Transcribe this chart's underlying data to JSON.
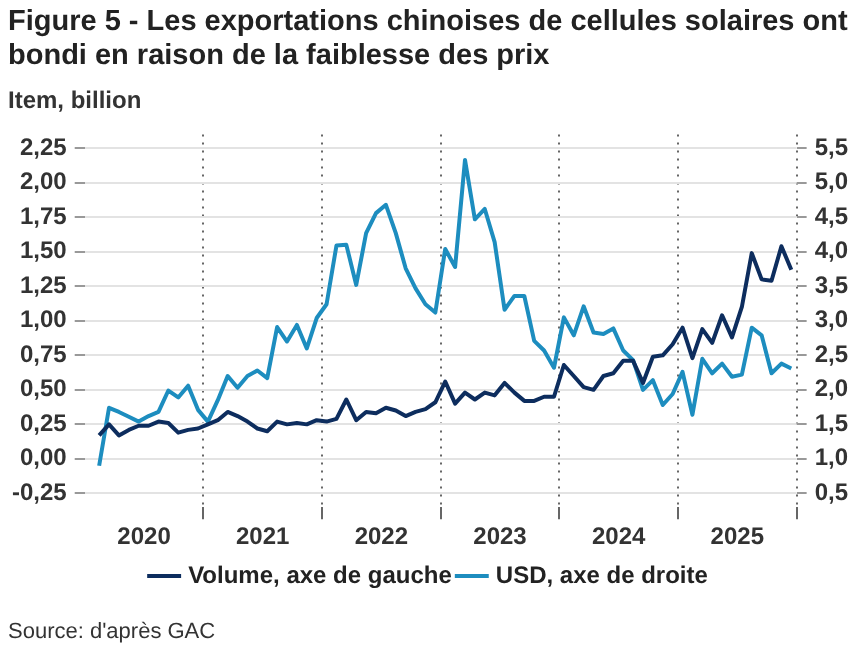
{
  "chart_data": {
    "type": "line",
    "title": "Figure 5 - Les exportations chinoises de cellules solaires ont bondi en raison de la faiblesse des prix",
    "ylabel": "Item, billion",
    "x": [
      "2020-02-15",
      "2020-03-15",
      "2020-04-15",
      "2020-05-15",
      "2020-06-15",
      "2020-07-15",
      "2020-08-15",
      "2020-09-15",
      "2020-10-15",
      "2020-11-15",
      "2020-12-15",
      "2021-01-15",
      "2021-02-15",
      "2021-03-15",
      "2021-04-15",
      "2021-05-15",
      "2021-06-15",
      "2021-07-15",
      "2021-08-15",
      "2021-09-15",
      "2021-10-15",
      "2021-11-15",
      "2021-12-15",
      "2022-01-15",
      "2022-02-15",
      "2022-03-15",
      "2022-04-15",
      "2022-05-15",
      "2022-06-15",
      "2022-07-15",
      "2022-08-15",
      "2022-09-15",
      "2022-10-15",
      "2022-11-15",
      "2022-12-15",
      "2023-01-15",
      "2023-02-15",
      "2023-03-15",
      "2023-04-15",
      "2023-05-15",
      "2023-06-15",
      "2023-07-15",
      "2023-08-15",
      "2023-09-15",
      "2023-10-15",
      "2023-11-15",
      "2023-12-15",
      "2024-01-15",
      "2024-02-15",
      "2024-03-15",
      "2024-04-15",
      "2024-05-15",
      "2024-06-15",
      "2024-07-15",
      "2024-08-15",
      "2024-09-15",
      "2024-10-15",
      "2024-11-15",
      "2024-12-15",
      "2025-01-15",
      "2025-02-15",
      "2025-03-15",
      "2025-04-15",
      "2025-05-15",
      "2025-06-15",
      "2025-07-15",
      "2025-08-15",
      "2025-09-15",
      "2025-10-15",
      "2025-11-15",
      "2025-12-15"
    ],
    "series": [
      {
        "name": "Volume, axe de gauche",
        "color": "#0d2d5e",
        "values": [
          0.17,
          0.25,
          0.17,
          0.21,
          0.24,
          0.24,
          0.27,
          0.26,
          0.19,
          0.21,
          0.22,
          0.25,
          0.28,
          0.34,
          0.31,
          0.27,
          0.22,
          0.2,
          0.27,
          0.25,
          0.26,
          0.25,
          0.28,
          0.27,
          0.29,
          0.43,
          0.28,
          0.34,
          0.33,
          0.37,
          0.35,
          0.31,
          0.34,
          0.36,
          0.41,
          0.56,
          0.4,
          0.48,
          0.43,
          0.48,
          0.46,
          0.55,
          0.48,
          0.42,
          0.42,
          0.45,
          0.45,
          0.68,
          0.6,
          0.52,
          0.5,
          0.6,
          0.62,
          0.71,
          0.71,
          0.55,
          0.74,
          0.75,
          0.83,
          0.95,
          0.73,
          0.94,
          0.84,
          1.04,
          0.88,
          1.1,
          1.49,
          1.3,
          1.29,
          1.54,
          1.37
        ]
      },
      {
        "name": "USD, axe de droite",
        "color": "#1d8dbf",
        "axis": "y2",
        "values": [
          0.9,
          1.74,
          1.68,
          1.61,
          1.54,
          1.62,
          1.68,
          1.99,
          1.89,
          2.06,
          1.71,
          1.54,
          1.85,
          2.2,
          2.03,
          2.2,
          2.28,
          2.17,
          2.91,
          2.7,
          2.94,
          2.6,
          3.04,
          3.24,
          4.09,
          4.1,
          3.52,
          4.27,
          4.56,
          4.68,
          4.27,
          3.76,
          3.47,
          3.24,
          3.12,
          4.04,
          3.78,
          5.33,
          4.47,
          4.62,
          4.14,
          3.16,
          3.36,
          3.36,
          2.71,
          2.57,
          2.32,
          3.05,
          2.79,
          3.21,
          2.83,
          2.81,
          2.89,
          2.57,
          2.43,
          2.0,
          2.14,
          1.78,
          1.94,
          2.26,
          1.64,
          2.45,
          2.24,
          2.38,
          2.19,
          2.22,
          2.9,
          2.79,
          2.24,
          2.38,
          2.31
        ]
      }
    ],
    "xlim": [
      "2020-01",
      "2026-01"
    ],
    "xticks": [
      {
        "value": "2020-07",
        "label": "2020"
      },
      {
        "value": "2021-01",
        "label": null
      },
      {
        "value": "2021-07",
        "label": "2021"
      },
      {
        "value": "2022-01",
        "label": null
      },
      {
        "value": "2022-07",
        "label": "2022"
      },
      {
        "value": "2023-01",
        "label": null
      },
      {
        "value": "2023-07",
        "label": "2023"
      },
      {
        "value": "2024-01",
        "label": null
      },
      {
        "value": "2024-07",
        "label": "2024"
      },
      {
        "value": "2025-01",
        "label": null
      },
      {
        "value": "2025-07",
        "label": "2025"
      },
      {
        "value": "2026-01",
        "label": null
      }
    ],
    "ylim": [
      -0.35,
      2.35
    ],
    "yticks": [
      {
        "value": -0.25,
        "label": "-0,25"
      },
      {
        "value": 0,
        "label": "0,00"
      },
      {
        "value": 0.25,
        "label": "0,25"
      },
      {
        "value": 0.5,
        "label": "0,50"
      },
      {
        "value": 0.75,
        "label": "0,75"
      },
      {
        "value": 1,
        "label": "1,00"
      },
      {
        "value": 1.25,
        "label": "1,25"
      },
      {
        "value": 1.5,
        "label": "1,50"
      },
      {
        "value": 1.75,
        "label": "1,75"
      },
      {
        "value": 2,
        "label": "2,00"
      },
      {
        "value": 2.25,
        "label": "2,25"
      }
    ],
    "y2lim": [
      0.3,
      5.7
    ],
    "y2ticks": [
      {
        "value": 0.5,
        "label": "0,5"
      },
      {
        "value": 1,
        "label": "1,0"
      },
      {
        "value": 1.5,
        "label": "1,5"
      },
      {
        "value": 2,
        "label": "2,0"
      },
      {
        "value": 2.5,
        "label": "2,5"
      },
      {
        "value": 3,
        "label": "3,0"
      },
      {
        "value": 3.5,
        "label": "3,5"
      },
      {
        "value": 4,
        "label": "4,0"
      },
      {
        "value": 4.5,
        "label": "4,5"
      },
      {
        "value": 5,
        "label": "5,0"
      },
      {
        "value": 5.5,
        "label": "5,5"
      }
    ],
    "grid": true,
    "legend": "bottom",
    "marker": "none",
    "line_style": "solid",
    "annotations": [
      "Source: d'après GAC"
    ]
  }
}
